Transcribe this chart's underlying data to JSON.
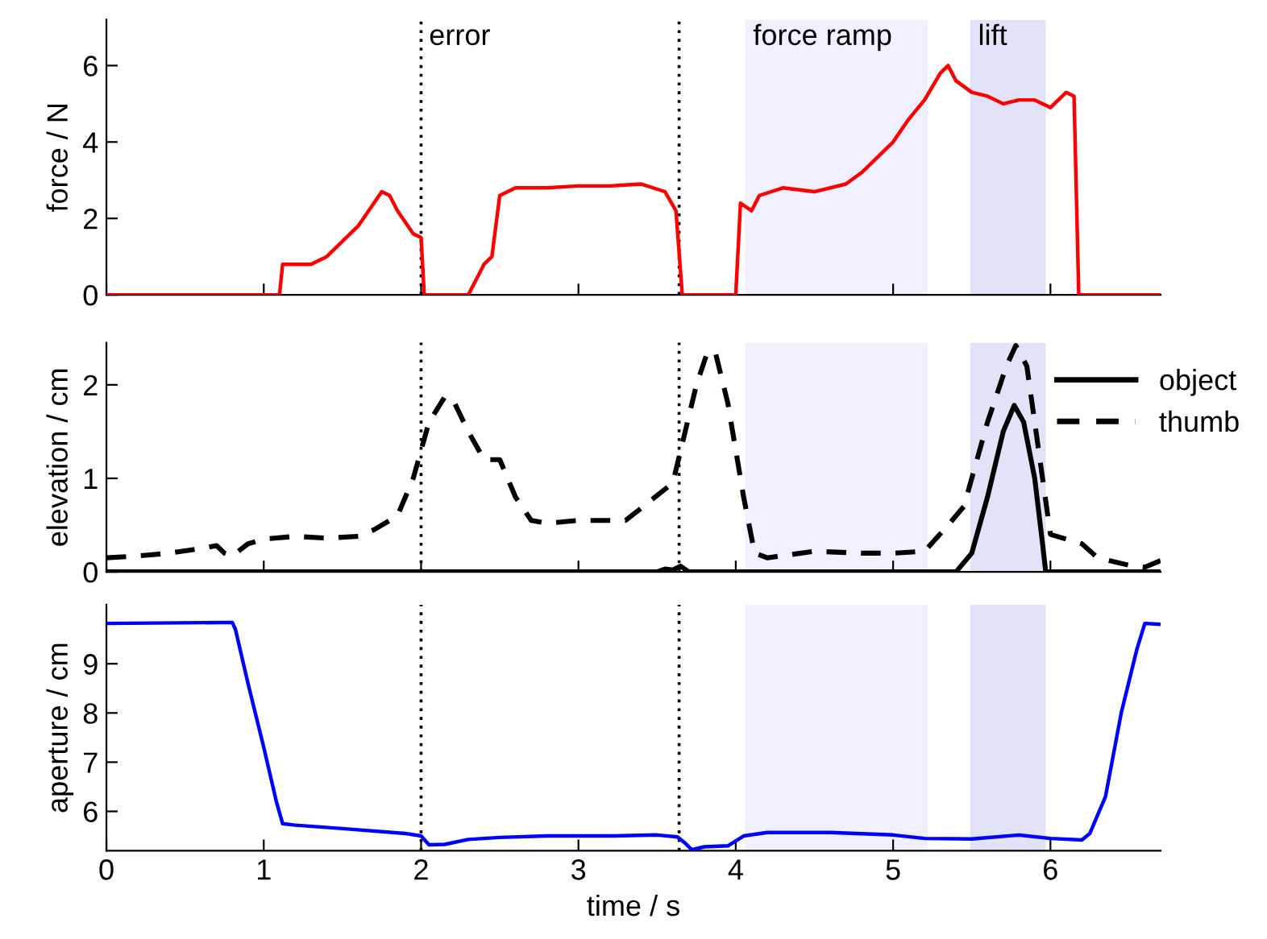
{
  "chart_data": [
    {
      "type": "line",
      "ylabel": "force / N",
      "xlim": [
        0,
        6.7
      ],
      "xticks": [
        0,
        1,
        2,
        3,
        4,
        5,
        6
      ],
      "ylim": [
        0,
        7.2
      ],
      "yticks": [
        0,
        2,
        4,
        6
      ],
      "tick_labels": "y",
      "grid": false,
      "legend": false,
      "ref_lines": [
        {
          "axis": "x",
          "value": 2.0,
          "label": "error",
          "line_style": "dotted",
          "color": "#000000"
        },
        {
          "axis": "x",
          "value": 3.64,
          "line_style": "dotted",
          "color": "#000000"
        }
      ],
      "bands": [
        {
          "axis": "x",
          "from": 4.06,
          "to": 5.22,
          "label": "force ramp",
          "color": "#f0f0fe"
        },
        {
          "axis": "x",
          "from": 5.49,
          "to": 5.97,
          "label": "lift",
          "color": "#e2e2f9"
        }
      ],
      "series": [
        {
          "color": "#ff0000",
          "line_style": "solid",
          "x": [
            0,
            1.1,
            1.12,
            1.2,
            1.3,
            1.4,
            1.5,
            1.6,
            1.7,
            1.75,
            1.8,
            1.85,
            1.9,
            1.95,
            2.0,
            2.02,
            2.3,
            2.35,
            2.4,
            2.45,
            2.5,
            2.6,
            2.8,
            3.0,
            3.2,
            3.4,
            3.55,
            3.62,
            3.66,
            4.0,
            4.03,
            4.1,
            4.15,
            4.3,
            4.5,
            4.7,
            4.8,
            4.9,
            5.0,
            5.1,
            5.2,
            5.3,
            5.35,
            5.4,
            5.5,
            5.6,
            5.7,
            5.8,
            5.9,
            6.0,
            6.1,
            6.15,
            6.18,
            6.7
          ],
          "values": [
            0,
            0,
            0.8,
            0.8,
            0.8,
            1.0,
            1.4,
            1.8,
            2.4,
            2.7,
            2.6,
            2.2,
            1.9,
            1.6,
            1.5,
            0,
            0,
            0.4,
            0.8,
            1.0,
            2.6,
            2.8,
            2.8,
            2.85,
            2.85,
            2.9,
            2.7,
            2.2,
            0,
            0,
            2.4,
            2.2,
            2.6,
            2.8,
            2.7,
            2.9,
            3.2,
            3.6,
            4.0,
            4.6,
            5.1,
            5.8,
            6.0,
            5.6,
            5.3,
            5.2,
            5.0,
            5.1,
            5.1,
            4.9,
            5.3,
            5.2,
            0,
            0
          ]
        }
      ]
    },
    {
      "type": "line",
      "ylabel": "elevation / cm",
      "xlim": [
        0,
        6.7
      ],
      "xticks": [
        0,
        1,
        2,
        3,
        4,
        5,
        6
      ],
      "ylim": [
        0,
        2.45
      ],
      "yticks": [
        0,
        1,
        2
      ],
      "tick_labels": "y",
      "grid": false,
      "legend": "top right",
      "ref_lines": [
        {
          "axis": "x",
          "value": 2.0,
          "line_style": "dotted",
          "color": "#000000"
        },
        {
          "axis": "x",
          "value": 3.64,
          "line_style": "dotted",
          "color": "#000000"
        }
      ],
      "bands": [
        {
          "axis": "x",
          "from": 4.06,
          "to": 5.22,
          "color": "#f0f0fe"
        },
        {
          "axis": "x",
          "from": 5.49,
          "to": 5.97,
          "color": "#e2e2f9"
        }
      ],
      "series": [
        {
          "name": "object",
          "color": "#000000",
          "line_style": "solid",
          "x": [
            0,
            3.5,
            3.55,
            3.6,
            3.65,
            3.7,
            5.4,
            5.5,
            5.6,
            5.7,
            5.77,
            5.83,
            5.9,
            5.95,
            5.97,
            6.7
          ],
          "values": [
            0,
            0,
            0.03,
            0.02,
            0.06,
            0,
            0,
            0.2,
            0.8,
            1.5,
            1.78,
            1.6,
            1.0,
            0.3,
            0,
            0
          ]
        },
        {
          "name": "thumb",
          "color": "#000000",
          "line_style": "dashed",
          "x": [
            0,
            0.2,
            0.4,
            0.6,
            0.7,
            0.75,
            0.8,
            0.9,
            1.0,
            1.2,
            1.4,
            1.6,
            1.7,
            1.85,
            1.95,
            2.05,
            2.15,
            2.2,
            2.3,
            2.4,
            2.5,
            2.6,
            2.7,
            2.8,
            3.0,
            3.2,
            3.3,
            3.45,
            3.6,
            3.65,
            3.75,
            3.82,
            3.87,
            3.95,
            4.05,
            4.12,
            4.2,
            4.5,
            4.8,
            5.0,
            5.2,
            5.35,
            5.45,
            5.6,
            5.72,
            5.78,
            5.85,
            5.95,
            6.0,
            6.1,
            6.2,
            6.3,
            6.5,
            6.6,
            6.7
          ],
          "values": [
            0.15,
            0.17,
            0.2,
            0.25,
            0.28,
            0.2,
            0.17,
            0.3,
            0.35,
            0.38,
            0.36,
            0.38,
            0.45,
            0.6,
            1.0,
            1.6,
            1.87,
            1.85,
            1.5,
            1.2,
            1.2,
            0.8,
            0.55,
            0.52,
            0.55,
            0.55,
            0.55,
            0.75,
            0.95,
            1.3,
            2.0,
            2.35,
            2.35,
            1.8,
            0.8,
            0.2,
            0.15,
            0.22,
            0.2,
            0.2,
            0.22,
            0.5,
            0.7,
            1.6,
            2.2,
            2.42,
            2.2,
            1.0,
            0.4,
            0.35,
            0.3,
            0.15,
            0.07,
            0.05,
            0.12
          ]
        }
      ]
    },
    {
      "type": "line",
      "xlabel": "time / s",
      "ylabel": "aperture / cm",
      "xlim": [
        0,
        6.7
      ],
      "xticks": [
        0,
        1,
        2,
        3,
        4,
        5,
        6
      ],
      "ylim": [
        5.2,
        10.2
      ],
      "yticks": [
        6,
        7,
        8,
        9
      ],
      "grid": false,
      "legend": false,
      "ref_lines": [
        {
          "axis": "x",
          "value": 2.0,
          "line_style": "dotted",
          "color": "#000000"
        },
        {
          "axis": "x",
          "value": 3.64,
          "line_style": "dotted",
          "color": "#000000"
        }
      ],
      "bands": [
        {
          "axis": "x",
          "from": 4.06,
          "to": 5.22,
          "color": "#f0f0fe"
        },
        {
          "axis": "x",
          "from": 5.49,
          "to": 5.97,
          "color": "#e2e2f9"
        }
      ],
      "series": [
        {
          "color": "#0000ff",
          "line_style": "solid",
          "x": [
            0,
            0.8,
            0.82,
            0.9,
            1.0,
            1.08,
            1.12,
            1.2,
            1.5,
            1.9,
            2.0,
            2.05,
            2.15,
            2.3,
            2.5,
            2.8,
            3.2,
            3.5,
            3.63,
            3.68,
            3.72,
            3.8,
            3.95,
            4.05,
            4.2,
            4.6,
            5.0,
            5.2,
            5.5,
            5.8,
            6.0,
            6.2,
            6.25,
            6.35,
            6.45,
            6.55,
            6.6,
            6.7
          ],
          "values": [
            9.82,
            9.84,
            9.7,
            8.6,
            7.3,
            6.2,
            5.75,
            5.72,
            5.65,
            5.55,
            5.5,
            5.32,
            5.33,
            5.43,
            5.47,
            5.5,
            5.5,
            5.52,
            5.48,
            5.35,
            5.22,
            5.28,
            5.3,
            5.5,
            5.57,
            5.57,
            5.52,
            5.45,
            5.44,
            5.52,
            5.45,
            5.42,
            5.55,
            6.3,
            8.0,
            9.3,
            9.82,
            9.8
          ]
        }
      ]
    }
  ]
}
